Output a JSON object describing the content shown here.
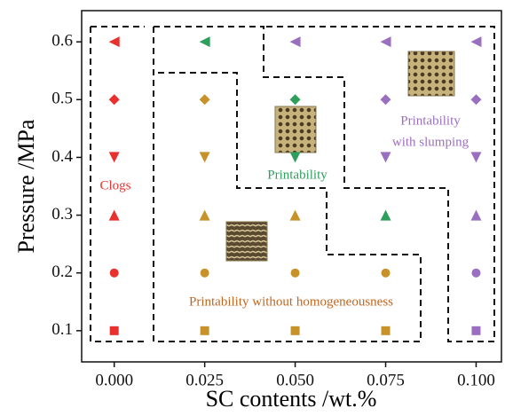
{
  "chart_data": {
    "type": "scatter",
    "xlabel": "SC contents /wt.%",
    "ylabel": "Pressure /MPa",
    "xlim": [
      -0.009,
      0.107
    ],
    "ylim": [
      0.046,
      0.654
    ],
    "xticks": [
      {
        "value": 0,
        "label": "0.000"
      },
      {
        "value": 0.025,
        "label": "0.025"
      },
      {
        "value": 0.05,
        "label": "0.050"
      },
      {
        "value": 0.075,
        "label": "0.075"
      },
      {
        "value": 0.1,
        "label": "0.100"
      }
    ],
    "yticks": [
      0.1,
      0.2,
      0.3,
      0.4,
      0.5,
      0.6
    ],
    "series": [
      {
        "marker": "triangle-left",
        "x": [
          0,
          0.025,
          0.05,
          0.075,
          0.1
        ],
        "y": [
          0.6,
          0.6,
          0.6,
          0.6,
          0.6
        ],
        "colors": [
          "#e8312f",
          "#2e9e5b",
          "#9b6fc0",
          "#9b6fc0",
          "#9b6fc0"
        ]
      },
      {
        "marker": "diamond",
        "x": [
          0,
          0.025,
          0.05,
          0.075,
          0.1
        ],
        "y": [
          0.5,
          0.5,
          0.5,
          0.5,
          0.5
        ],
        "colors": [
          "#e8312f",
          "#c8922a",
          "#2e9e5b",
          "#9b6fc0",
          "#9b6fc0"
        ]
      },
      {
        "marker": "triangle-down",
        "x": [
          0,
          0.025,
          0.05,
          0.075,
          0.1
        ],
        "y": [
          0.4,
          0.4,
          0.4,
          0.4,
          0.4
        ],
        "colors": [
          "#e8312f",
          "#c8922a",
          "#2e9e5b",
          "#9b6fc0",
          "#9b6fc0"
        ]
      },
      {
        "marker": "triangle-up",
        "x": [
          0,
          0.025,
          0.05,
          0.075,
          0.1
        ],
        "y": [
          0.3,
          0.3,
          0.3,
          0.3,
          0.3
        ],
        "colors": [
          "#e8312f",
          "#c8922a",
          "#c8922a",
          "#2e9e5b",
          "#9b6fc0"
        ]
      },
      {
        "marker": "circle",
        "x": [
          0,
          0.025,
          0.05,
          0.075,
          0.1
        ],
        "y": [
          0.2,
          0.2,
          0.2,
          0.2,
          0.2
        ],
        "colors": [
          "#e8312f",
          "#c8922a",
          "#c8922a",
          "#c8922a",
          "#9b6fc0"
        ]
      },
      {
        "marker": "square",
        "x": [
          0,
          0.025,
          0.05,
          0.075,
          0.1
        ],
        "y": [
          0.1,
          0.1,
          0.1,
          0.1,
          0.1
        ],
        "colors": [
          "#e8312f",
          "#c8922a",
          "#c8922a",
          "#c8922a",
          "#9b6fc0"
        ]
      }
    ],
    "annotations": [
      {
        "text": "Clogs",
        "color": "#e8312f"
      },
      {
        "text": "Printability",
        "color": "#2e9e5b"
      },
      {
        "text": "Printability",
        "color": "#9b6fc0"
      },
      {
        "text": "with slumping",
        "color": "#9b6fc0"
      },
      {
        "text": "Printability without homogeneousness",
        "color": "#c0661e"
      }
    ]
  }
}
